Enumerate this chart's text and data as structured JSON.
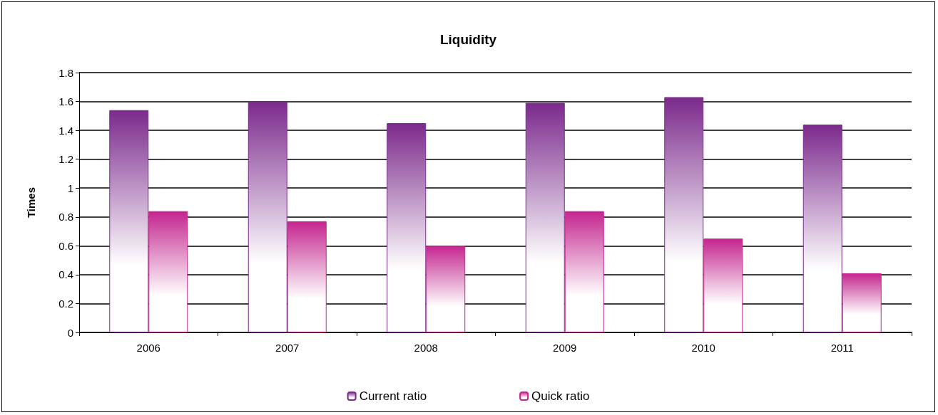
{
  "chart_data": {
    "type": "bar",
    "title": "Liquidity",
    "ylabel": "Times",
    "categories": [
      "2006",
      "2007",
      "2008",
      "2009",
      "2010",
      "2011"
    ],
    "series": [
      {
        "name": "Current ratio",
        "color": "#7b2a8c",
        "values": [
          1.54,
          1.6,
          1.45,
          1.59,
          1.63,
          1.44
        ]
      },
      {
        "name": "Quick ratio",
        "color": "#c4268f",
        "values": [
          0.84,
          0.77,
          0.6,
          0.84,
          0.65,
          0.41
        ]
      }
    ],
    "ylim": [
      0,
      1.8
    ],
    "yticks": [
      0,
      0.2,
      0.4,
      0.6,
      0.8,
      1,
      1.2,
      1.4,
      1.6,
      1.8
    ],
    "grid": "y",
    "legend": "bottom"
  }
}
